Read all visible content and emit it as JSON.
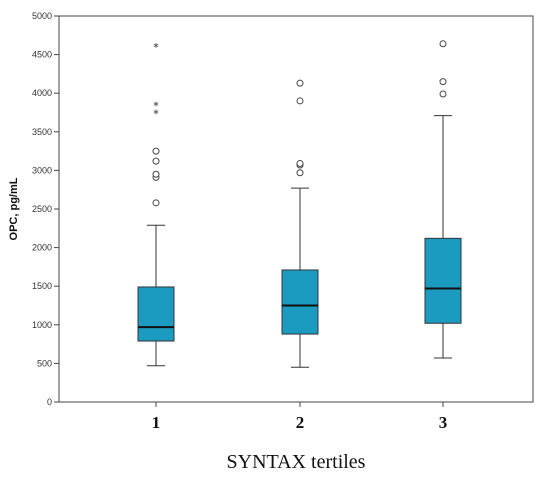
{
  "chart_data": {
    "type": "box",
    "xlabel": "SYNTAX tertiles",
    "ylabel": "OPC, pg/mL",
    "categories": [
      "1",
      "2",
      "3"
    ],
    "ylim": [
      0,
      5000
    ],
    "yticks": [
      0,
      500,
      1000,
      1500,
      2000,
      2500,
      3000,
      3500,
      4000,
      4500,
      5000
    ],
    "grid": false,
    "box_color": "#1a9bbf",
    "boxes": [
      {
        "category": "1",
        "whisker_low": 470,
        "q1": 790,
        "median": 970,
        "q3": 1490,
        "whisker_high": 2290,
        "outliers": [
          2580,
          2910,
          2950,
          3120,
          3250
        ],
        "extremes": [
          3740,
          3840,
          4600
        ]
      },
      {
        "category": "2",
        "whisker_low": 450,
        "q1": 880,
        "median": 1250,
        "q3": 1710,
        "whisker_high": 2770,
        "outliers": [
          2970,
          3070,
          3090,
          3900,
          4130
        ],
        "extremes": []
      },
      {
        "category": "3",
        "whisker_low": 570,
        "q1": 1020,
        "median": 1470,
        "q3": 2120,
        "whisker_high": 3710,
        "outliers": [
          3990,
          4150,
          4640
        ],
        "extremes": []
      }
    ]
  }
}
